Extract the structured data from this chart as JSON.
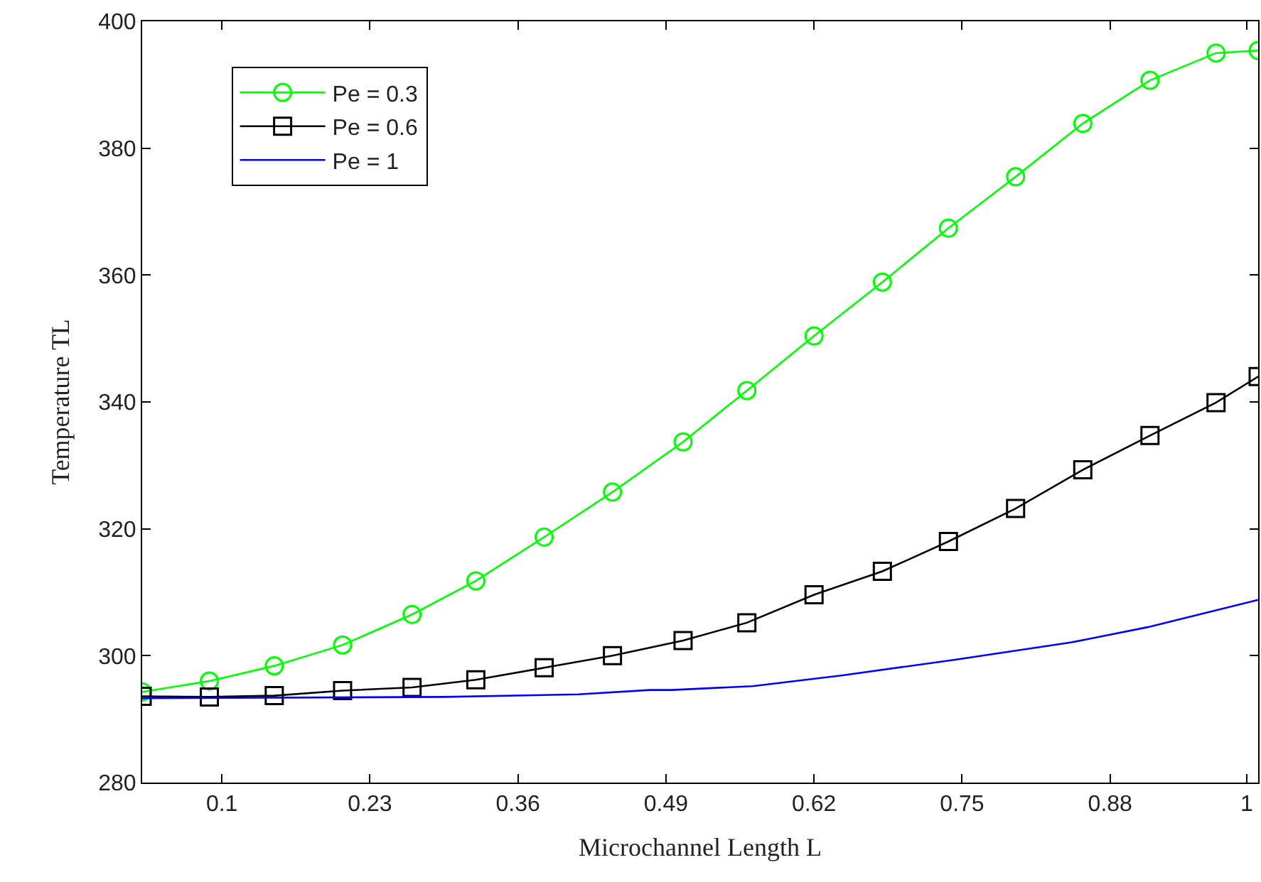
{
  "chart_data": {
    "type": "line",
    "xlabel": "Microchannel Length L",
    "ylabel": "Temperature TL",
    "xlim": [
      0.03,
      1.01
    ],
    "ylim": [
      280,
      400
    ],
    "xticks": [
      0.1,
      0.23,
      0.36,
      0.49,
      0.62,
      0.75,
      0.88,
      1
    ],
    "yticks": [
      280,
      300,
      320,
      340,
      360,
      380,
      400
    ],
    "legend": "top left",
    "line_style": "solid",
    "series": [
      {
        "name": "Pe = 0.3",
        "color": "#00ff00",
        "marker": "circle",
        "x": [
          0.03,
          0.089,
          0.146,
          0.206,
          0.267,
          0.323,
          0.383,
          0.443,
          0.505,
          0.561,
          0.62,
          0.68,
          0.738,
          0.797,
          0.856,
          0.915,
          0.973,
          1.01
        ],
        "values": [
          294.3,
          296.0,
          298.4,
          301.7,
          306.5,
          311.8,
          318.7,
          325.8,
          333.7,
          341.8,
          350.4,
          358.9,
          367.4,
          375.5,
          383.9,
          390.7,
          395.0,
          395.4
        ]
      },
      {
        "name": "Pe = 0.6",
        "color": "#000000",
        "marker": "square",
        "x": [
          0.03,
          0.089,
          0.146,
          0.206,
          0.267,
          0.323,
          0.383,
          0.443,
          0.505,
          0.561,
          0.62,
          0.68,
          0.738,
          0.797,
          0.856,
          0.915,
          0.973,
          1.01
        ],
        "values": [
          293.6,
          293.5,
          293.7,
          294.5,
          295.0,
          296.2,
          298.1,
          300.0,
          302.4,
          305.2,
          309.6,
          313.3,
          318.0,
          323.2,
          329.3,
          334.7,
          339.9,
          344.0
        ]
      },
      {
        "name": "Pe = 1",
        "color": "#0000ff",
        "marker": "none",
        "x": [
          0.03,
          0.295,
          0.413,
          0.476,
          0.495,
          0.566,
          0.645,
          0.745,
          0.846,
          0.913,
          1.01
        ],
        "values": [
          293.3,
          293.5,
          293.9,
          294.6,
          294.6,
          295.2,
          296.9,
          299.4,
          302.1,
          304.5,
          308.8
        ]
      }
    ]
  }
}
